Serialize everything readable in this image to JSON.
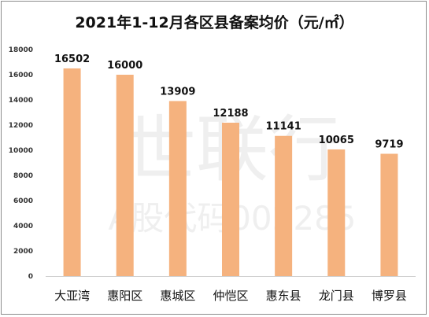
{
  "chart_data": {
    "type": "bar",
    "title": "2021年1-12月各区县备案均价（元/㎡）",
    "categories": [
      "大亚湾",
      "惠阳区",
      "惠城区",
      "仲恺区",
      "惠东县",
      "龙门县",
      "博罗县"
    ],
    "values": [
      16502,
      16000,
      13909,
      12188,
      11141,
      10065,
      9719
    ],
    "data_labels": [
      "16502",
      "16000",
      "13909",
      "12188",
      "11141",
      "10065",
      "9719"
    ],
    "ylim": [
      0,
      18000
    ],
    "yticks": [
      "0",
      "2000",
      "4000",
      "6000",
      "8000",
      "10000",
      "12000",
      "14000",
      "16000",
      "18000"
    ],
    "grid": false,
    "legend": "none",
    "bar_color": "#f5b27e",
    "watermark": [
      "世联行",
      "A股代码002285"
    ]
  }
}
